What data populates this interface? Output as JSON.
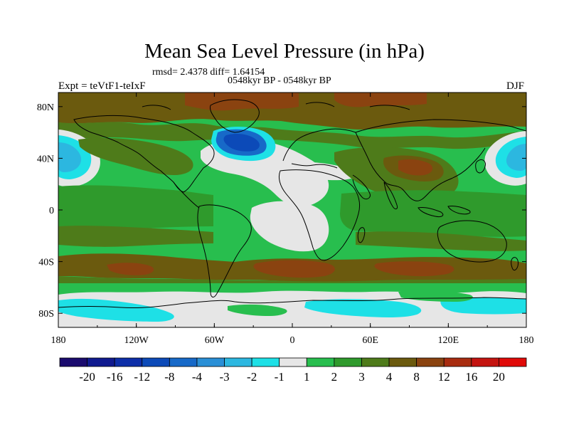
{
  "figure": {
    "title": "Mean Sea Level Pressure (in hPa)",
    "stats_line": "rmsd= 2.4378 diff= 1.64154",
    "period_line": "0548kyr BP - 0548kyr BP",
    "experiment_label": "Expt = teVtF1-teIxF",
    "season_label": "DJF"
  },
  "axes": {
    "lon_ticks": [
      "180",
      "120W",
      "60W",
      "0",
      "60E",
      "120E",
      "180"
    ],
    "lat_ticks": [
      "80N",
      "40N",
      "0",
      "40S",
      "80S"
    ]
  },
  "colorbar": {
    "labels": [
      "-20",
      "-16",
      "-12",
      "-8",
      "-4",
      "-3",
      "-2",
      "-1",
      "1",
      "2",
      "3",
      "4",
      "8",
      "12",
      "16",
      "20"
    ],
    "colors": [
      "#1a0b6e",
      "#101a8f",
      "#0d2ea8",
      "#0c4ab8",
      "#1769c8",
      "#2a8fd6",
      "#2cb7e0",
      "#1ee0e6",
      "#e6e6e6",
      "#28be4e",
      "#2f9a2c",
      "#4e7b1a",
      "#6b5a0e",
      "#8a4310",
      "#a82c10",
      "#c41410",
      "#e00a08"
    ]
  },
  "map_colors": {
    "ocean_base": "#28be4e",
    "light": "#e6e6e6",
    "cyan": "#1ee0e6",
    "light_blue": "#2cb7e0",
    "mid_blue": "#1769c8",
    "dark_blue": "#0c4ab8",
    "green_dark": "#2f9a2c",
    "olive": "#4e7b1a",
    "brown": "#6b5a0e",
    "rust": "#8a4310",
    "coast": "#000000"
  }
}
